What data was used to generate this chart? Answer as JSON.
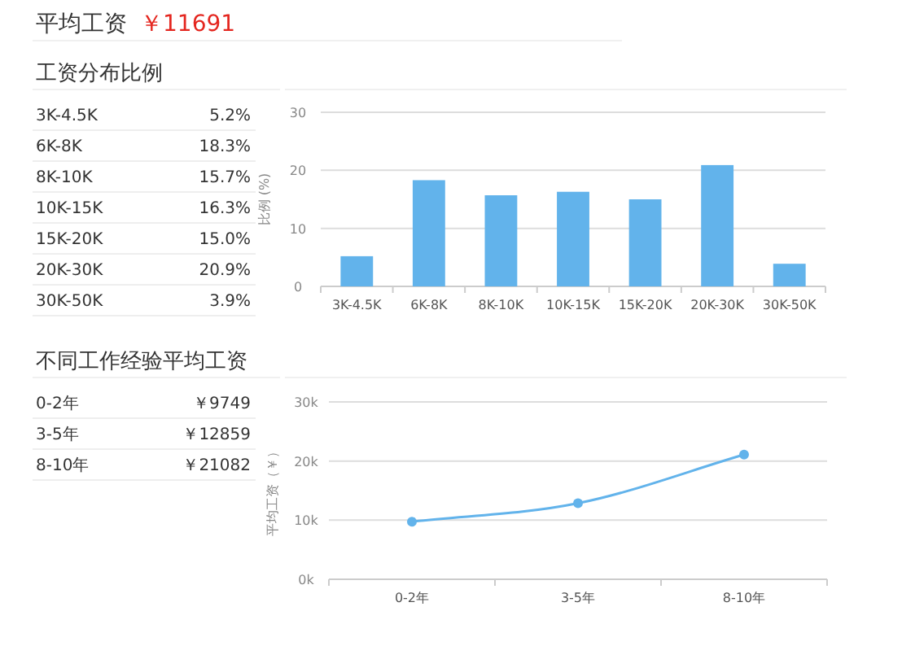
{
  "chart_data": [
    {
      "type": "other",
      "title": "平均工资",
      "annotations": [
        "￥11691"
      ]
    },
    {
      "type": "other",
      "title": "工资分布比例",
      "annotations": [
        "3K-4.5K",
        "5.2%",
        "6K-8K",
        "18.3%",
        "8K-10K",
        "15.7%",
        "10K-15K",
        "16.3%",
        "15K-20K",
        "15.0%",
        "20K-30K",
        "20.9%",
        "30K-50K",
        "3.9%"
      ]
    },
    {
      "type": "bar",
      "categories": [
        "3K-4.5K",
        "6K-8K",
        "8K-10K",
        "10K-15K",
        "15K-20K",
        "20K-30K",
        "30K-50K"
      ],
      "values": [
        5.2,
        18.3,
        15.7,
        16.3,
        15.0,
        20.9,
        3.9
      ],
      "color": "#62b3eb",
      "ylabel": "比例 (%)",
      "ylim": [
        0,
        30
      ],
      "yticks": [
        0,
        10,
        20,
        30
      ],
      "grid": "y"
    },
    {
      "type": "other",
      "title": "不同工作经验平均工资",
      "annotations": [
        "0-2年",
        "￥9749",
        "3-5年",
        "￥12859",
        "8-10年",
        "￥21082"
      ]
    },
    {
      "type": "line",
      "categories": [
        "0-2年",
        "3-5年",
        "8-10年"
      ],
      "values": [
        9749,
        12859,
        21082
      ],
      "color": "#62b3eb",
      "marker": "circle",
      "ylabel": "平均工资（￥）",
      "ylim": [
        0,
        30000
      ],
      "yticks": [
        {
          "value": 0,
          "label": "0k"
        },
        {
          "value": 10000,
          "label": "10k"
        },
        {
          "value": 20000,
          "label": "20k"
        },
        {
          "value": 30000,
          "label": "30k"
        }
      ],
      "grid": "y"
    }
  ]
}
